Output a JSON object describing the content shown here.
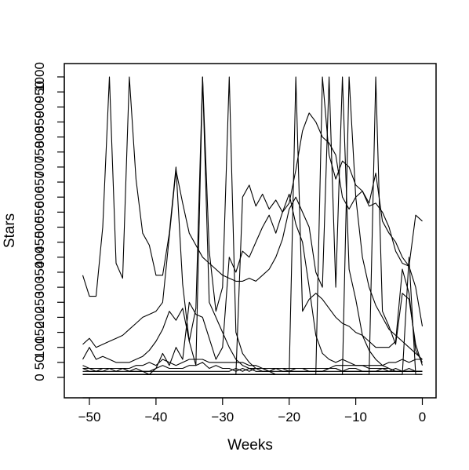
{
  "chart_data": {
    "type": "line",
    "title": "",
    "xlabel": "Weeks",
    "ylabel": "Stars",
    "xlim": [
      -52,
      0
    ],
    "ylim": [
      0,
      100
    ],
    "xticks": [
      -50,
      -40,
      -30,
      -20,
      -10,
      0
    ],
    "xtick_labels": [
      "−50",
      "−40",
      "−30",
      "−20",
      "−10",
      "0"
    ],
    "ytick_labels": [
      "0",
      "50",
      "100",
      "150",
      "200",
      "250",
      "300",
      "350",
      "400",
      "450",
      "500",
      "550",
      "600",
      "650",
      "700",
      "750",
      "800",
      "850",
      "900",
      "950",
      "1000"
    ],
    "line_color": "#000000",
    "grid": false,
    "legend": "none",
    "x": [
      -51,
      -50,
      -49,
      -48,
      -47,
      -46,
      -45,
      -44,
      -43,
      -42,
      -41,
      -40,
      -39,
      -38,
      -37,
      -36,
      -35,
      -34,
      -33,
      -32,
      -31,
      -30,
      -29,
      -28,
      -27,
      -26,
      -25,
      -24,
      -23,
      -22,
      -21,
      -20,
      -19,
      -18,
      -17,
      -16,
      -15,
      -14,
      -13,
      -12,
      -11,
      -10,
      -9,
      -8,
      -7,
      -6,
      -5,
      -4,
      -3,
      -2,
      -1,
      0
    ],
    "series": [
      {
        "values": [
          34,
          27,
          27,
          50,
          100,
          38,
          33,
          100,
          66,
          48,
          44,
          34,
          34,
          48,
          70,
          31,
          12,
          4,
          100,
          25,
          20,
          15,
          10,
          6,
          4,
          3,
          2,
          2,
          2,
          1,
          1,
          1,
          1,
          1,
          1,
          1,
          1,
          1,
          1,
          1,
          1,
          1,
          1,
          1,
          1,
          1,
          1,
          1,
          1,
          1,
          1,
          1
        ]
      },
      {
        "values": [
          1,
          1,
          1,
          1,
          1,
          1,
          1,
          1,
          1,
          1,
          1,
          1,
          1,
          1,
          1,
          1,
          1,
          1,
          1,
          1,
          1,
          1,
          1,
          1,
          1,
          1,
          1,
          1,
          1,
          1,
          1,
          1,
          100,
          22,
          26,
          28,
          26,
          23,
          20,
          18,
          17,
          15,
          14,
          12,
          10,
          10,
          10,
          12,
          36,
          28,
          9,
          5
        ]
      },
      {
        "values": [
          6,
          10,
          6,
          7,
          6,
          5,
          5,
          5,
          6,
          7,
          9,
          12,
          16,
          22,
          19,
          23,
          12,
          23,
          100,
          42,
          22,
          30,
          100,
          15,
          8,
          5,
          3,
          2,
          2,
          2,
          2,
          2,
          2,
          2,
          2,
          2,
          2,
          2,
          2,
          2,
          2,
          2,
          2,
          2,
          2,
          2,
          2,
          2,
          2,
          2,
          2,
          2
        ]
      },
      {
        "values": [
          1,
          1,
          1,
          1,
          1,
          1,
          1,
          1,
          1,
          1,
          1,
          1,
          1,
          1,
          1,
          1,
          1,
          1,
          1,
          1,
          1,
          1,
          1,
          1,
          60,
          64,
          57,
          61,
          56,
          59,
          55,
          58,
          69,
          82,
          88,
          85,
          80,
          78,
          74,
          60,
          56,
          60,
          62,
          58,
          68,
          52,
          48,
          45,
          40,
          37,
          54,
          52
        ]
      },
      {
        "values": [
          1,
          1,
          1,
          1,
          1,
          1,
          1,
          1,
          1,
          1,
          1,
          1,
          1,
          1,
          1,
          1,
          1,
          1,
          1,
          1,
          1,
          1,
          1,
          1,
          1,
          1,
          1,
          1,
          1,
          1,
          1,
          1,
          1,
          1,
          1,
          1,
          100,
          74,
          66,
          72,
          70,
          64,
          62,
          57,
          58,
          55,
          50,
          42,
          38,
          37,
          30,
          17
        ]
      },
      {
        "values": [
          11,
          13,
          10,
          11,
          12,
          13,
          14,
          16,
          18,
          20,
          21,
          22,
          25,
          47,
          69,
          58,
          48,
          44,
          40,
          38,
          36,
          34,
          33,
          32,
          32,
          33,
          32,
          34,
          36,
          40,
          46,
          56,
          60,
          55,
          50,
          35,
          30,
          100,
          30,
          100,
          36,
          26,
          14,
          9,
          6,
          4,
          3,
          2,
          2,
          2,
          2,
          2
        ]
      },
      {
        "values": [
          1,
          1,
          1,
          1,
          1,
          1,
          1,
          1,
          1,
          1,
          1,
          1,
          1,
          1,
          1,
          1,
          1,
          1,
          1,
          1,
          1,
          1,
          1,
          1,
          1,
          1,
          1,
          1,
          1,
          1,
          1,
          1,
          1,
          1,
          1,
          1,
          1,
          1,
          1,
          1,
          100,
          60,
          40,
          30,
          24,
          20,
          16,
          14,
          12,
          10,
          8,
          6
        ]
      },
      {
        "values": [
          3,
          3,
          2,
          3,
          3,
          3,
          3,
          2,
          2,
          2,
          1,
          3,
          8,
          4,
          10,
          6,
          25,
          21,
          20,
          13,
          6,
          10,
          40,
          35,
          42,
          40,
          45,
          50,
          54,
          48,
          55,
          61,
          51,
          45,
          30,
          14,
          8,
          6,
          5,
          6,
          5,
          4,
          4,
          4,
          4,
          4,
          5,
          5,
          6,
          5,
          6,
          6
        ]
      },
      {
        "values": [
          4,
          3,
          3,
          3,
          3,
          3,
          3,
          3,
          4,
          4,
          5,
          4,
          6,
          5,
          4,
          5,
          6,
          6,
          6,
          5,
          5,
          5,
          5,
          5,
          5,
          4,
          4,
          3,
          3,
          3,
          3,
          3,
          3,
          3,
          3,
          3,
          3,
          3,
          4,
          4,
          4,
          4,
          4,
          3,
          3,
          3,
          3,
          2,
          2,
          2,
          2,
          2
        ]
      },
      {
        "values": [
          2,
          2,
          2,
          2,
          2,
          2,
          2,
          2,
          2,
          2,
          2,
          2,
          2,
          2,
          2,
          2,
          2,
          2,
          2,
          2,
          2,
          2,
          2,
          3,
          2,
          3,
          3,
          3,
          2,
          3,
          2,
          2,
          2,
          2,
          2,
          2,
          2,
          3,
          3,
          2,
          2,
          2,
          2,
          2,
          2,
          2,
          2,
          2,
          2,
          2,
          2,
          2
        ]
      },
      {
        "values": [
          1,
          1,
          1,
          1,
          1,
          1,
          1,
          1,
          1,
          1,
          1,
          1,
          1,
          1,
          1,
          1,
          1,
          1,
          1,
          1,
          1,
          1,
          1,
          1,
          1,
          1,
          1,
          1,
          1,
          1,
          1,
          1,
          1,
          1,
          1,
          1,
          1,
          1,
          1,
          1,
          1,
          1,
          1,
          1,
          100,
          22,
          17,
          11,
          28,
          26,
          11,
          4
        ]
      },
      {
        "values": [
          1,
          1,
          1,
          1,
          1,
          1,
          1,
          1,
          1,
          1,
          1,
          1,
          1,
          1,
          1,
          1,
          1,
          1,
          1,
          1,
          1,
          1,
          1,
          1,
          1,
          1,
          1,
          1,
          1,
          1,
          1,
          1,
          1,
          1,
          1,
          1,
          1,
          1,
          1,
          1,
          1,
          1,
          1,
          1,
          1,
          1,
          1,
          1,
          1,
          40,
          1,
          1
        ]
      },
      {
        "values": [
          3,
          2,
          2,
          2,
          3,
          2,
          3,
          2,
          3,
          2,
          2,
          3,
          4,
          3,
          3,
          3,
          4,
          4,
          5,
          3,
          4,
          3,
          3,
          2,
          3,
          2,
          3,
          3,
          2,
          3,
          3,
          2,
          3,
          3,
          2,
          2,
          2,
          3,
          3,
          2,
          3,
          3,
          2,
          2,
          2,
          3,
          2,
          3,
          2,
          3,
          2,
          2
        ]
      }
    ]
  }
}
